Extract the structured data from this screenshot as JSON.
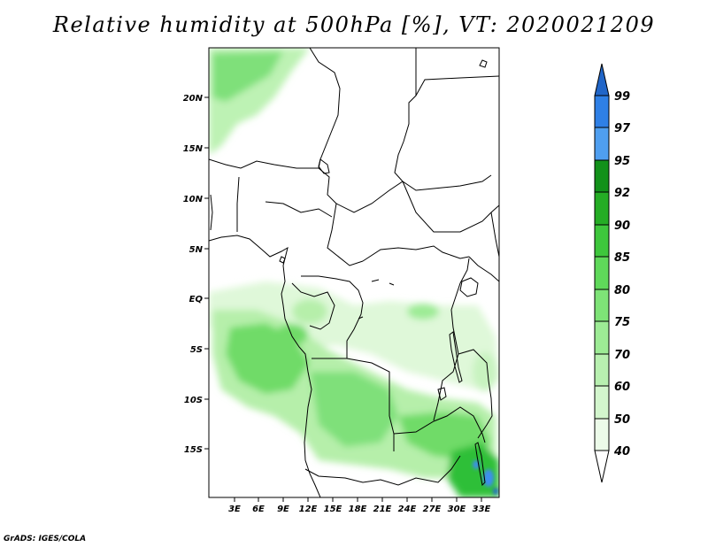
{
  "title": "Relative humidity at 500hPa [%], VT: 2020021209",
  "footer": "GrADS: IGES/COLA",
  "map": {
    "lat_labels": [
      "20N",
      "15N",
      "10N",
      "5N",
      "EQ",
      "5S",
      "10S",
      "15S"
    ],
    "lon_labels": [
      "3E",
      "6E",
      "9E",
      "12E",
      "15E",
      "18E",
      "21E",
      "24E",
      "27E",
      "30E",
      "33E"
    ]
  },
  "colorbar": {
    "levels": [
      "40",
      "50",
      "60",
      "70",
      "75",
      "80",
      "85",
      "90",
      "92",
      "95",
      "97",
      "99"
    ],
    "colors": [
      "#ecfbe9",
      "#d3f6cd",
      "#b8f0b0",
      "#9deb95",
      "#7ee377",
      "#5fd95a",
      "#3ec73c",
      "#25ad25",
      "#12911a",
      "#4f9ff0",
      "#2f80e6",
      "#2166c8"
    ]
  },
  "colors": {
    "light_green": "#c8f3c0",
    "medium_green": "#7fe07a",
    "dark_green": "#2fbf38",
    "blue": "#3d8ef0"
  }
}
